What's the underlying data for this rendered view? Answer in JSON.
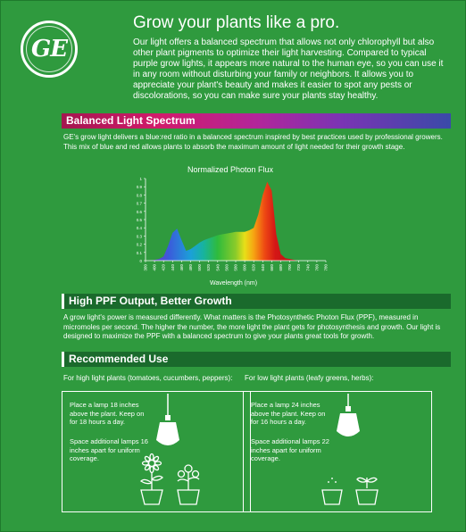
{
  "brand": {
    "logo_text": "GE"
  },
  "header": {
    "title": "Grow your plants like a pro.",
    "intro": "Our light offers a balanced spectrum that allows not only chlorophyll but also other plant pigments to optimize their light harvesting. Compared to typical purple grow lights, it appears more natural to the human eye, so you can use it in any room without disturbing your family or neighbors. It allows you to appreciate your plant's beauty and makes it easier to spot any pests or discolorations, so you can make sure your plants stay healthy."
  },
  "spectrum_section": {
    "title": "Balanced Light Spectrum",
    "body": "GE's grow light delivers a blue:red ratio in a balanced spectrum inspired by best practices used by professional growers. This mix of blue and red allows plants to absorb the maximum amount of light needed for their growth stage."
  },
  "chart_data": {
    "type": "area",
    "title": "Normalized Photon Flux",
    "xlabel": "Wavelength (nm)",
    "ylabel": "",
    "x": [
      380,
      390,
      400,
      410,
      420,
      430,
      440,
      450,
      460,
      470,
      480,
      490,
      500,
      510,
      520,
      530,
      540,
      550,
      560,
      570,
      580,
      590,
      600,
      610,
      620,
      630,
      640,
      650,
      660,
      670,
      680,
      690,
      700,
      710,
      720,
      730,
      740,
      750,
      760,
      770,
      780
    ],
    "values": [
      0,
      0,
      0.01,
      0.02,
      0.05,
      0.18,
      0.34,
      0.39,
      0.25,
      0.12,
      0.14,
      0.18,
      0.22,
      0.25,
      0.27,
      0.29,
      0.31,
      0.32,
      0.33,
      0.34,
      0.35,
      0.35,
      0.35,
      0.37,
      0.4,
      0.56,
      0.8,
      0.96,
      0.85,
      0.32,
      0.08,
      0.03,
      0.02,
      0.01,
      0,
      0,
      0,
      0,
      0,
      0,
      0
    ],
    "xticks": [
      "380",
      "400",
      "420",
      "440",
      "460",
      "480",
      "500",
      "520",
      "540",
      "560",
      "580",
      "600",
      "620",
      "640",
      "660",
      "680",
      "700",
      "720",
      "740",
      "760",
      "780"
    ],
    "yticks": [
      "0",
      "0.1",
      "0.2",
      "0.3",
      "0.4",
      "0.5",
      "0.6",
      "0.7",
      "0.8",
      "0.9",
      "1"
    ],
    "xlim": [
      380,
      780
    ],
    "ylim": [
      0,
      1
    ]
  },
  "ppf_section": {
    "title": "High PPF Output, Better Growth",
    "body": "A grow light's power is measured differently. What matters is the Photosynthetic Photon Flux (PPF), measured in micromoles per second. The higher the number, the more light the plant gets for photosynthesis and growth. Our light is designed to maximize the PPF with a balanced spectrum to give your plants great tools for growth."
  },
  "recommended": {
    "title": "Recommended Use",
    "high": {
      "heading": "For high light plants (tomatoes, cucumbers, peppers):",
      "placement": "Place a lamp 18 inches above the plant. Keep on for 18 hours a day.",
      "spacing": "Space additional lamps 16 inches apart for uniform coverage."
    },
    "low": {
      "heading": "For low light plants (leafy greens, herbs):",
      "placement": "Place a lamp 24 inches above the plant. Keep on for 16 hours a day.",
      "spacing": "Space additional lamps 22 inches apart for uniform coverage."
    }
  }
}
